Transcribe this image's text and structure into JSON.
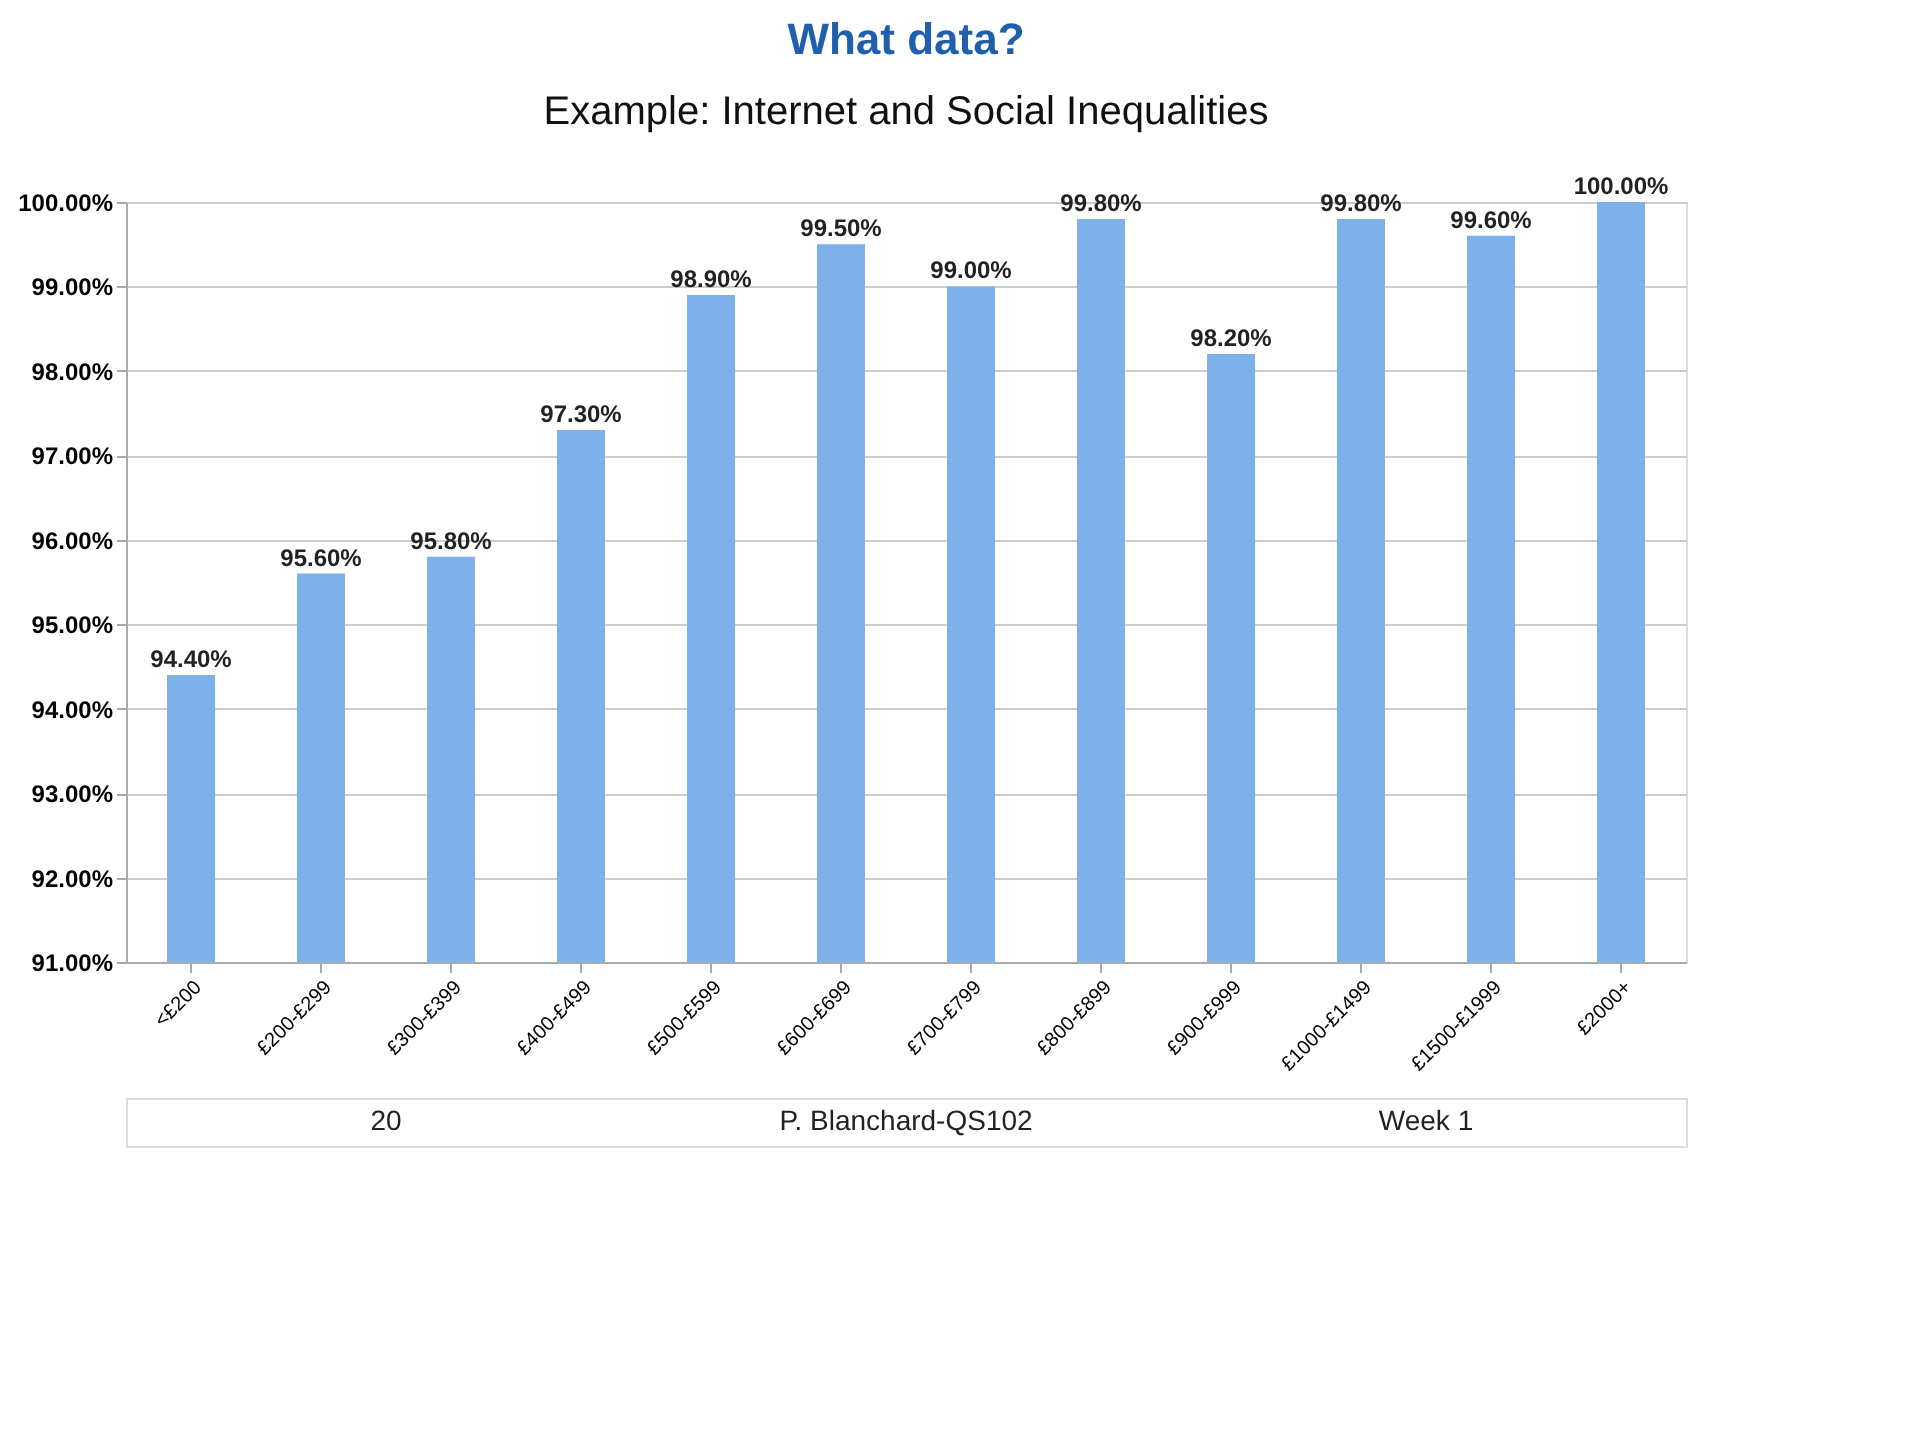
{
  "chart_data": {
    "type": "bar",
    "title": "What data?",
    "subtitle": "Example: Internet and Social Inequalities",
    "categories": [
      "<£200",
      "£200-£299",
      "£300-£399",
      "£400-£499",
      "£500-£599",
      "£600-£699",
      "£700-£799",
      "£800-£899",
      "£900-£999",
      "£1000-£1499",
      "£1500-£1999",
      "£2000+"
    ],
    "values": [
      94.4,
      95.6,
      95.8,
      97.3,
      98.9,
      99.5,
      99.0,
      99.8,
      98.2,
      99.8,
      99.6,
      100.0
    ],
    "value_labels": [
      "94.40%",
      "95.60%",
      "95.80%",
      "97.30%",
      "98.90%",
      "99.50%",
      "99.00%",
      "99.80%",
      "98.20%",
      "99.80%",
      "99.60%",
      "100.00%"
    ],
    "color": "#7eb0ea",
    "ylim": [
      91,
      100
    ],
    "yticks": [
      {
        "value": 91,
        "label": "91.00%"
      },
      {
        "value": 92,
        "label": "92.00%"
      },
      {
        "value": 93,
        "label": "93.00%"
      },
      {
        "value": 94,
        "label": "94.00%"
      },
      {
        "value": 95,
        "label": "95.00%"
      },
      {
        "value": 96,
        "label": "96.00%"
      },
      {
        "value": 97,
        "label": "97.00%"
      },
      {
        "value": 98,
        "label": "98.00%"
      },
      {
        "value": 99,
        "label": "99.00%"
      },
      {
        "value": 100,
        "label": "100.00%"
      }
    ],
    "grid": "y",
    "annotations": [
      "20",
      "P. Blanchard-QS102",
      "Week 1"
    ]
  }
}
